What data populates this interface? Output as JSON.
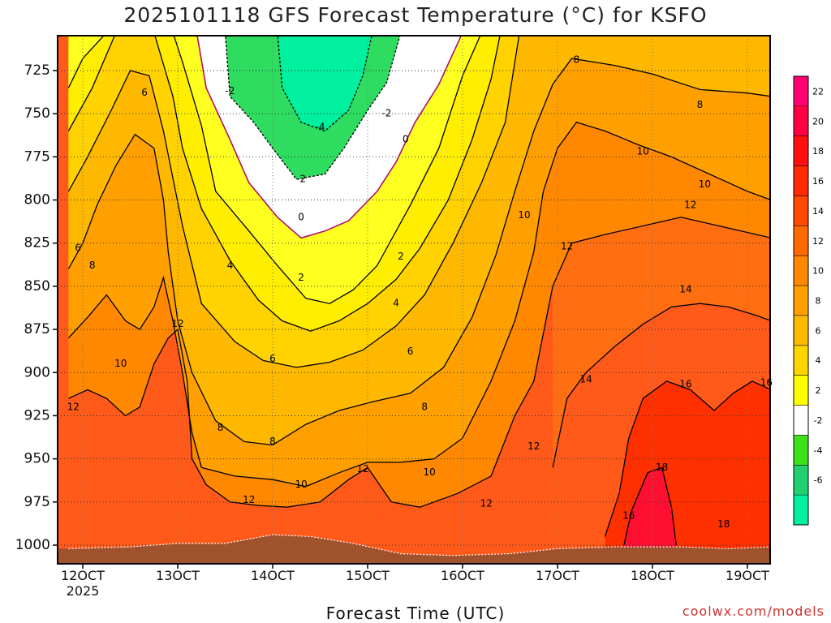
{
  "title": "2025101118 GFS Forecast Temperature (°C) for KSFO",
  "credit": "coolwx.com/models",
  "chart_data": {
    "type": "heatmap",
    "title": "2025101118 GFS Forecast Temperature (°C) for KSFO",
    "xlabel": "Forecast Time (UTC)",
    "ylabel": "",
    "x_ticks": [
      "12OCT",
      "13OCT",
      "14OCT",
      "15OCT",
      "16OCT",
      "17OCT",
      "18OCT",
      "19OCT"
    ],
    "x_tick_sub": "2025",
    "xlim_days": [
      11.85,
      19.25
    ],
    "y_ticks": [
      725,
      750,
      775,
      800,
      825,
      850,
      875,
      900,
      925,
      950,
      975,
      1000
    ],
    "ylim": [
      703,
      1010
    ],
    "y_reversed": true,
    "grid": true,
    "levels": [
      -8,
      -6,
      -4,
      -2,
      2,
      4,
      6,
      8,
      10,
      12,
      14,
      16,
      18,
      20,
      22,
      24
    ],
    "level_colors": [
      "#00f0a0",
      "#2ad55a",
      "#55d22a",
      "#ffffff",
      "#ffff00",
      "#ffe000",
      "#ffc000",
      "#ffa500",
      "#ff8c00",
      "#ff7a00",
      "#ff5c00",
      "#ff3a00",
      "#ff1a00",
      "#ff0030",
      "#ff0070"
    ],
    "colorbar_labels": [
      "22",
      "20",
      "18",
      "16",
      "14",
      "12",
      "10",
      "8",
      "6",
      "4",
      "2",
      "-2",
      "-4",
      "-6"
    ],
    "ground_color": "#a0522d",
    "contour_labels": [
      {
        "v": "-2",
        "t": 13.55,
        "p": 737
      },
      {
        "v": "-4",
        "t": 14.5,
        "p": 758
      },
      {
        "v": "-2",
        "t": 15.2,
        "p": 750
      },
      {
        "v": "0",
        "t": 15.4,
        "p": 765
      },
      {
        "v": "-2",
        "t": 14.3,
        "p": 788
      },
      {
        "v": "0",
        "t": 14.3,
        "p": 810
      },
      {
        "v": "2",
        "t": 14.3,
        "p": 845
      },
      {
        "v": "2",
        "t": 15.35,
        "p": 833
      },
      {
        "v": "4",
        "t": 15.3,
        "p": 860
      },
      {
        "v": "4",
        "t": 13.55,
        "p": 838
      },
      {
        "v": "6",
        "t": 12.65,
        "p": 738
      },
      {
        "v": "6",
        "t": 11.95,
        "p": 828
      },
      {
        "v": "8",
        "t": 12.1,
        "p": 838
      },
      {
        "v": "8",
        "t": 17.2,
        "p": 719
      },
      {
        "v": "8",
        "t": 18.5,
        "p": 745
      },
      {
        "v": "6",
        "t": 14.0,
        "p": 892
      },
      {
        "v": "6",
        "t": 15.45,
        "p": 888
      },
      {
        "v": "12",
        "t": 13.0,
        "p": 872
      },
      {
        "v": "10",
        "t": 12.4,
        "p": 895
      },
      {
        "v": "12",
        "t": 11.9,
        "p": 920
      },
      {
        "v": "8",
        "t": 13.45,
        "p": 932
      },
      {
        "v": "8",
        "t": 14.0,
        "p": 940
      },
      {
        "v": "8",
        "t": 15.6,
        "p": 920
      },
      {
        "v": "12",
        "t": 13.75,
        "p": 974
      },
      {
        "v": "10",
        "t": 14.3,
        "p": 965
      },
      {
        "v": "12",
        "t": 14.95,
        "p": 956
      },
      {
        "v": "10",
        "t": 15.65,
        "p": 958
      },
      {
        "v": "12",
        "t": 16.25,
        "p": 976
      },
      {
        "v": "10",
        "t": 16.65,
        "p": 809
      },
      {
        "v": "12",
        "t": 17.1,
        "p": 827
      },
      {
        "v": "10",
        "t": 17.9,
        "p": 772
      },
      {
        "v": "10",
        "t": 18.55,
        "p": 791
      },
      {
        "v": "12",
        "t": 18.4,
        "p": 803
      },
      {
        "v": "14",
        "t": 18.35,
        "p": 852
      },
      {
        "v": "14",
        "t": 17.3,
        "p": 904
      },
      {
        "v": "16",
        "t": 18.35,
        "p": 907
      },
      {
        "v": "16",
        "t": 19.2,
        "p": 906
      },
      {
        "v": "12",
        "t": 16.75,
        "p": 943
      },
      {
        "v": "18",
        "t": 18.1,
        "p": 955
      },
      {
        "v": "16",
        "t": 17.75,
        "p": 983
      },
      {
        "v": "18",
        "t": 18.75,
        "p": 988
      }
    ],
    "series": [
      {
        "level": 2,
        "points": [
          [
            11.85,
            735
          ],
          [
            12.0,
            718
          ],
          [
            12.25,
            703
          ],
          [
            12.6,
            703
          ],
          [
            12.95,
            703
          ],
          [
            13.05,
            720
          ],
          [
            13.25,
            757
          ],
          [
            13.4,
            795
          ],
          [
            13.75,
            818
          ],
          [
            14.05,
            838
          ],
          [
            14.35,
            857
          ],
          [
            14.6,
            860
          ],
          [
            14.85,
            852
          ],
          [
            15.1,
            838
          ],
          [
            15.45,
            803
          ],
          [
            15.75,
            770
          ],
          [
            16.0,
            728
          ],
          [
            16.2,
            703
          ]
        ]
      },
      {
        "level": 0,
        "points": [
          [
            13.2,
            703
          ],
          [
            13.3,
            735
          ],
          [
            13.55,
            765
          ],
          [
            13.75,
            790
          ],
          [
            14.05,
            810
          ],
          [
            14.3,
            822
          ],
          [
            14.55,
            818
          ],
          [
            14.8,
            812
          ],
          [
            15.1,
            795
          ],
          [
            15.3,
            778
          ],
          [
            15.5,
            755
          ],
          [
            15.75,
            733
          ],
          [
            16.0,
            703
          ]
        ]
      },
      {
        "level": -2,
        "points": [
          [
            13.5,
            703
          ],
          [
            13.55,
            740
          ],
          [
            13.8,
            755
          ],
          [
            14.0,
            770
          ],
          [
            14.25,
            788
          ],
          [
            14.55,
            785
          ],
          [
            14.75,
            770
          ],
          [
            15.0,
            748
          ],
          [
            15.2,
            732
          ],
          [
            15.35,
            703
          ]
        ]
      },
      {
        "level": -4,
        "points": [
          [
            14.05,
            703
          ],
          [
            14.1,
            735
          ],
          [
            14.3,
            755
          ],
          [
            14.55,
            760
          ],
          [
            14.8,
            748
          ],
          [
            14.95,
            728
          ],
          [
            15.05,
            703
          ]
        ]
      },
      {
        "level": 4,
        "points": [
          [
            11.85,
            760
          ],
          [
            12.1,
            735
          ],
          [
            12.35,
            703
          ],
          [
            12.75,
            703
          ],
          [
            12.95,
            740
          ],
          [
            13.05,
            770
          ],
          [
            13.25,
            805
          ],
          [
            13.55,
            835
          ],
          [
            13.85,
            858
          ],
          [
            14.1,
            870
          ],
          [
            14.4,
            876
          ],
          [
            14.7,
            870
          ],
          [
            15.0,
            860
          ],
          [
            15.3,
            846
          ],
          [
            15.55,
            828
          ],
          [
            15.85,
            800
          ],
          [
            16.1,
            765
          ],
          [
            16.3,
            730
          ],
          [
            16.4,
            703
          ]
        ]
      },
      {
        "level": 6,
        "points": [
          [
            11.85,
            795
          ],
          [
            12.05,
            775
          ],
          [
            12.3,
            748
          ],
          [
            12.5,
            725
          ],
          [
            12.7,
            728
          ],
          [
            12.85,
            760
          ],
          [
            13.05,
            815
          ],
          [
            13.25,
            860
          ],
          [
            13.6,
            882
          ],
          [
            13.9,
            893
          ],
          [
            14.25,
            897
          ],
          [
            14.6,
            894
          ],
          [
            14.95,
            887
          ],
          [
            15.3,
            873
          ],
          [
            15.6,
            855
          ],
          [
            15.9,
            825
          ],
          [
            16.2,
            790
          ],
          [
            16.45,
            755
          ],
          [
            16.6,
            703
          ]
        ]
      },
      {
        "level": 8,
        "points": [
          [
            11.85,
            840
          ],
          [
            12.0,
            825
          ],
          [
            12.15,
            803
          ],
          [
            12.35,
            780
          ],
          [
            12.55,
            762
          ],
          [
            12.75,
            770
          ],
          [
            12.85,
            800
          ],
          [
            12.9,
            830
          ],
          [
            13.0,
            870
          ],
          [
            13.15,
            900
          ],
          [
            13.4,
            928
          ],
          [
            13.7,
            940
          ],
          [
            14.0,
            942
          ],
          [
            14.35,
            930
          ],
          [
            14.7,
            922
          ],
          [
            15.05,
            917
          ],
          [
            15.45,
            912
          ],
          [
            15.8,
            897
          ],
          [
            16.1,
            868
          ],
          [
            16.35,
            832
          ],
          [
            16.55,
            795
          ],
          [
            16.75,
            760
          ],
          [
            16.95,
            733
          ],
          [
            17.15,
            718
          ],
          [
            17.6,
            722
          ],
          [
            18.0,
            727
          ],
          [
            18.5,
            736
          ],
          [
            19.0,
            738
          ],
          [
            19.25,
            740
          ]
        ]
      },
      {
        "level": 10,
        "points": [
          [
            11.85,
            880
          ],
          [
            12.05,
            868
          ],
          [
            12.25,
            855
          ],
          [
            12.45,
            870
          ],
          [
            12.6,
            875
          ],
          [
            12.75,
            862
          ],
          [
            12.85,
            845
          ],
          [
            12.95,
            870
          ],
          [
            13.05,
            900
          ],
          [
            13.15,
            935
          ],
          [
            13.25,
            955
          ],
          [
            13.6,
            960
          ],
          [
            14.0,
            962
          ],
          [
            14.35,
            966
          ],
          [
            14.7,
            958
          ],
          [
            15.0,
            952
          ],
          [
            15.35,
            952
          ],
          [
            15.7,
            950
          ],
          [
            16.0,
            938
          ],
          [
            16.3,
            905
          ],
          [
            16.55,
            870
          ],
          [
            16.75,
            830
          ],
          [
            16.85,
            795
          ],
          [
            17.0,
            770
          ],
          [
            17.2,
            755
          ],
          [
            17.5,
            760
          ],
          [
            17.85,
            768
          ],
          [
            18.2,
            775
          ],
          [
            18.6,
            785
          ],
          [
            19.0,
            795
          ],
          [
            19.25,
            800
          ]
        ]
      },
      {
        "level": 12,
        "points": [
          [
            11.85,
            915
          ],
          [
            12.05,
            910
          ],
          [
            12.25,
            915
          ],
          [
            12.45,
            925
          ],
          [
            12.6,
            920
          ],
          [
            12.75,
            895
          ],
          [
            12.9,
            880
          ],
          [
            13.0,
            875
          ],
          [
            13.1,
            905
          ],
          [
            13.15,
            950
          ],
          [
            13.3,
            965
          ],
          [
            13.55,
            975
          ],
          [
            13.85,
            977
          ],
          [
            14.15,
            978
          ],
          [
            14.5,
            975
          ],
          [
            14.8,
            962
          ],
          [
            15.0,
            955
          ],
          [
            15.25,
            975
          ],
          [
            15.55,
            978
          ],
          [
            15.95,
            970
          ],
          [
            16.3,
            960
          ],
          [
            16.55,
            925
          ],
          [
            16.75,
            905
          ],
          [
            16.95,
            850
          ],
          [
            17.15,
            825
          ],
          [
            17.5,
            820
          ],
          [
            17.9,
            815
          ],
          [
            18.3,
            810
          ],
          [
            18.7,
            815
          ],
          [
            19.25,
            822
          ]
        ]
      },
      {
        "level": 14,
        "points": [
          [
            16.95,
            955
          ],
          [
            17.1,
            915
          ],
          [
            17.3,
            900
          ],
          [
            17.6,
            885
          ],
          [
            17.9,
            872
          ],
          [
            18.2,
            862
          ],
          [
            18.5,
            860
          ],
          [
            18.8,
            862
          ],
          [
            19.1,
            867
          ],
          [
            19.25,
            870
          ]
        ]
      },
      {
        "level": 16,
        "points": [
          [
            17.5,
            995
          ],
          [
            17.65,
            970
          ],
          [
            17.75,
            938
          ],
          [
            17.9,
            915
          ],
          [
            18.15,
            905
          ],
          [
            18.4,
            910
          ],
          [
            18.65,
            922
          ],
          [
            18.85,
            912
          ],
          [
            19.05,
            905
          ],
          [
            19.25,
            910
          ]
        ]
      },
      {
        "level": 18,
        "points": [
          [
            17.7,
            1000
          ],
          [
            17.78,
            980
          ],
          [
            17.95,
            958
          ],
          [
            18.1,
            955
          ],
          [
            18.2,
            978
          ],
          [
            18.25,
            1000
          ]
        ]
      }
    ],
    "ground": [
      [
        11.85,
        1002
      ],
      [
        12.5,
        1001
      ],
      [
        13.0,
        999
      ],
      [
        13.5,
        999
      ],
      [
        14.0,
        994
      ],
      [
        14.4,
        995
      ],
      [
        14.85,
        999
      ],
      [
        15.35,
        1005
      ],
      [
        15.9,
        1006
      ],
      [
        16.5,
        1005
      ],
      [
        17.0,
        1002
      ],
      [
        17.6,
        1001
      ],
      [
        18.3,
        1001
      ],
      [
        18.8,
        1002
      ],
      [
        19.25,
        1001
      ]
    ]
  }
}
